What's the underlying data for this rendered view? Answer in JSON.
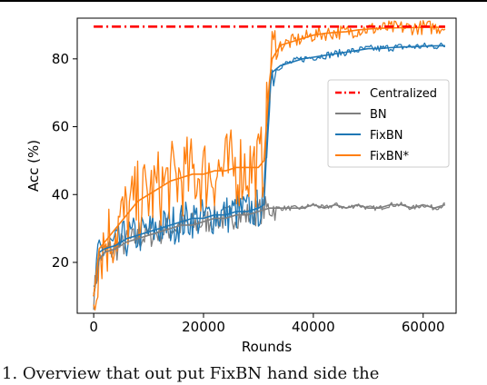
{
  "chart_data": {
    "type": "line",
    "title": "",
    "xlabel": "Rounds",
    "ylabel": "Acc (%)",
    "xlim": [
      -3000,
      66000
    ],
    "ylim": [
      5,
      92
    ],
    "x_ticks": [
      0,
      20000,
      40000,
      60000
    ],
    "y_ticks": [
      20,
      40,
      60,
      80
    ],
    "x_tick_labels": [
      "0",
      "20000",
      "40000",
      "60000"
    ],
    "y_tick_labels": [
      "20",
      "40",
      "60",
      "80"
    ],
    "grid": false,
    "legend_position": "center-right",
    "series": [
      {
        "name": "Centralized",
        "color": "#ff0000",
        "style": "dashdot",
        "x": [
          0,
          64000
        ],
        "y": [
          89.5,
          89.5
        ]
      },
      {
        "name": "BN",
        "color": "#7f7f7f",
        "style": "solid",
        "x": [
          0,
          1000,
          2000,
          4000,
          6000,
          8000,
          10000,
          12000,
          14000,
          16000,
          18000,
          20000,
          22000,
          24000,
          26000,
          28000,
          30000,
          32000,
          34000,
          36000,
          38000,
          40000,
          42000,
          44000,
          46000,
          48000,
          50000,
          52000,
          54000,
          56000,
          58000,
          60000,
          62000,
          64000
        ],
        "y": [
          10,
          21,
          23,
          24,
          26,
          27,
          28,
          29,
          30,
          31,
          31,
          32,
          33,
          33,
          34,
          34,
          35,
          36,
          36,
          36,
          36,
          37,
          36,
          37,
          36,
          37,
          36,
          36,
          37,
          37,
          36,
          37,
          36,
          37
        ]
      },
      {
        "name": "FixBN",
        "color": "#1f77b4",
        "style": "solid",
        "x": [
          0,
          1000,
          2000,
          4000,
          6000,
          8000,
          10000,
          12000,
          14000,
          16000,
          18000,
          20000,
          22000,
          24000,
          26000,
          28000,
          30000,
          31000,
          32000,
          32500,
          34000,
          36000,
          38000,
          40000,
          42000,
          44000,
          46000,
          48000,
          50000,
          52000,
          54000,
          56000,
          58000,
          60000,
          62000,
          64000
        ],
        "y": [
          10,
          23,
          24,
          25,
          27,
          28,
          29,
          30,
          31,
          32,
          33,
          33,
          34,
          34,
          35,
          35,
          36,
          37,
          70,
          76,
          78,
          79,
          80,
          80.5,
          81,
          81.5,
          82,
          82.5,
          83,
          83,
          83.3,
          83.5,
          83.6,
          83.7,
          83.8,
          83.9
        ]
      },
      {
        "name": "FixBN*",
        "color": "#ff7f0e",
        "style": "solid",
        "x": [
          0,
          1000,
          2000,
          4000,
          6000,
          8000,
          10000,
          12000,
          14000,
          16000,
          18000,
          20000,
          22000,
          24000,
          26000,
          28000,
          30000,
          31000,
          32000,
          32500,
          34000,
          36000,
          38000,
          40000,
          42000,
          44000,
          46000,
          48000,
          50000,
          52000,
          54000,
          56000,
          58000,
          60000,
          62000,
          64000
        ],
        "y": [
          10,
          24,
          26,
          30,
          34,
          38,
          40,
          42,
          44,
          45,
          46,
          46,
          47,
          47,
          48,
          48,
          48,
          50,
          73,
          80,
          84,
          85,
          86,
          87,
          87.5,
          87.8,
          88,
          88.5,
          88.8,
          89,
          89.1,
          89.2,
          89.2,
          89.3,
          89.3,
          89.3
        ]
      }
    ]
  },
  "caption": {
    "text": "1. Overview that out put FixBN hand side the"
  }
}
